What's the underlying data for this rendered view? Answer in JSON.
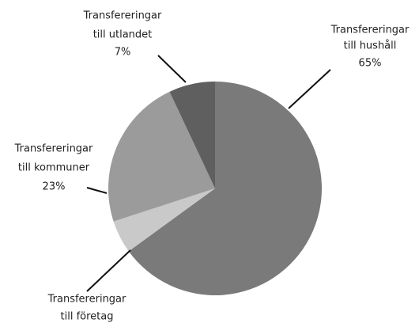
{
  "chart_data": {
    "type": "pie",
    "categories": [
      [
        "Transfereringar",
        "till hushåll"
      ],
      [
        "Transfereringar",
        "till företag"
      ],
      [
        "Transfereringar",
        "till kommuner"
      ],
      [
        "Transfereringar",
        "till utlandet"
      ]
    ],
    "values": [
      65,
      5,
      23,
      7
    ],
    "value_labels": [
      "65%",
      null,
      "23%",
      "7%"
    ],
    "colors": [
      "#7a7a7a",
      "#c9c9c9",
      "#9b9b9b",
      "#5f5f5f"
    ]
  }
}
